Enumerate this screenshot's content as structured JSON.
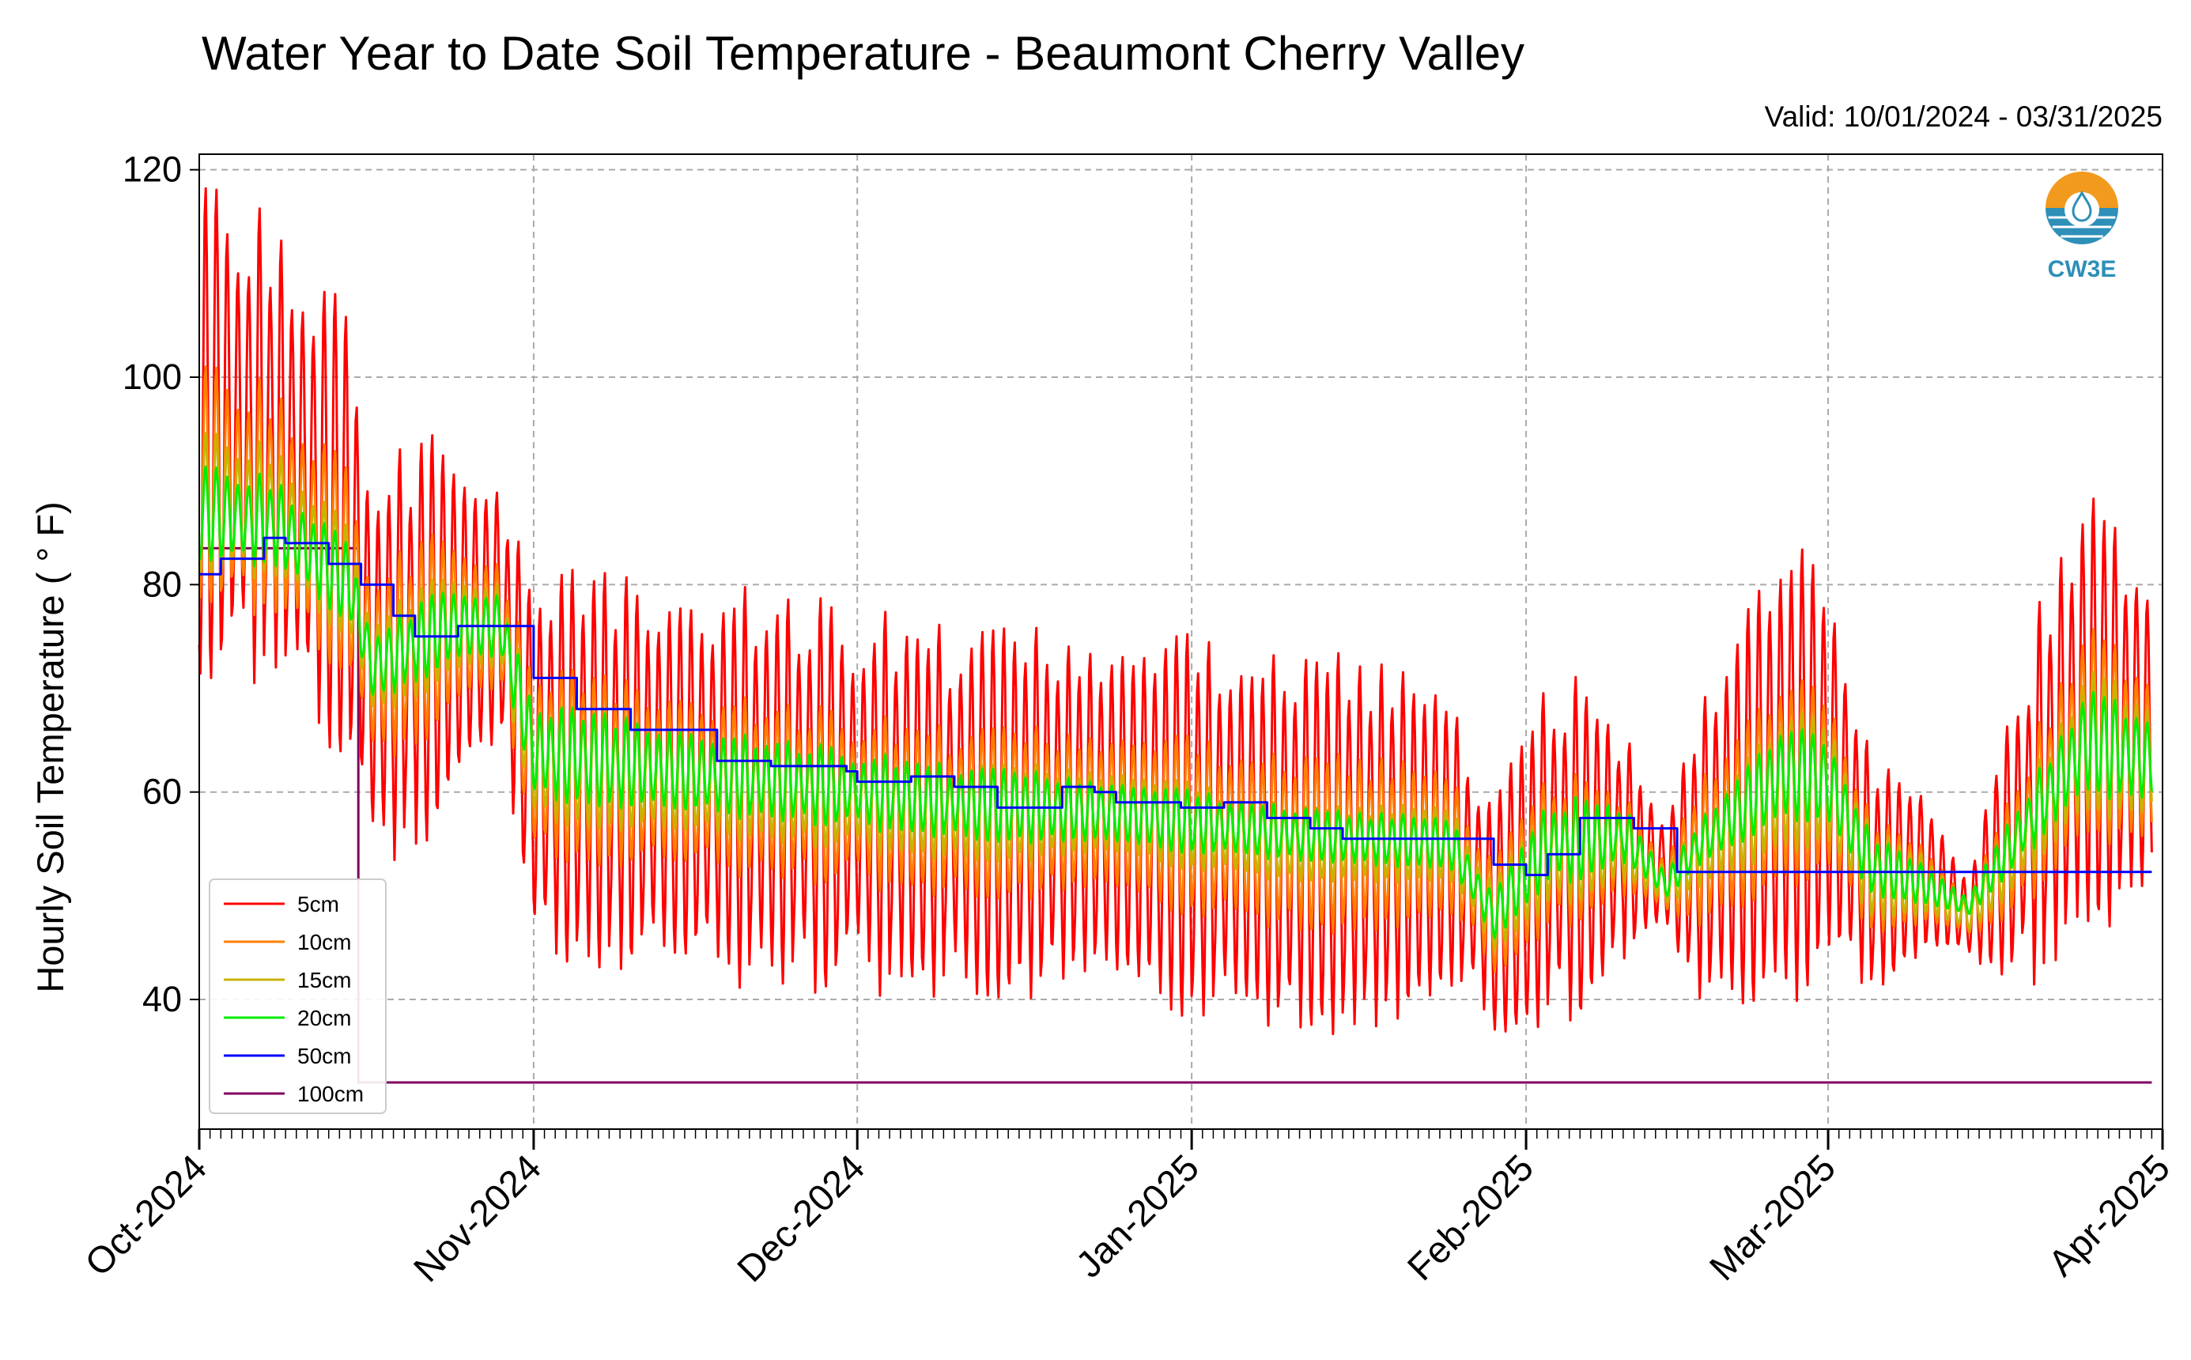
{
  "logo": {
    "text": "CW3E",
    "color": "#2e8fb8",
    "accent": "#f29a1e"
  },
  "chart_data": {
    "type": "line",
    "title": "Water Year to Date Soil Temperature - Beaumont Cherry Valley",
    "subtitle": "Valid: 10/01/2024 - 03/31/2025",
    "ylabel": "Hourly Soil Temperature ( ° F)",
    "xlabel": "",
    "ylim": [
      27.5,
      121.5
    ],
    "yticks": [
      40,
      60,
      80,
      100,
      120
    ],
    "xlim": [
      "2024-10-01",
      "2025-04-01"
    ],
    "xticks": [
      {
        "date": "2024-10-01",
        "label": "Oct-2024"
      },
      {
        "date": "2024-11-01",
        "label": "Nov-2024"
      },
      {
        "date": "2024-12-01",
        "label": "Dec-2024"
      },
      {
        "date": "2025-01-01",
        "label": "Jan-2025"
      },
      {
        "date": "2025-02-01",
        "label": "Feb-2025"
      },
      {
        "date": "2025-03-01",
        "label": "Mar-2025"
      },
      {
        "date": "2025-04-01",
        "label": "Apr-2025"
      }
    ],
    "grid": true,
    "legend_position": "lower-left",
    "daily_extremes_note": "values are approximate daily min/max read from the plot",
    "series": [
      {
        "name": "5cm",
        "color": "#ff0000",
        "style": "diurnal",
        "mean": [
          {
            "date": "2024-10-01",
            "value": 95
          },
          {
            "date": "2024-10-08",
            "value": 93
          },
          {
            "date": "2024-10-15",
            "value": 84
          },
          {
            "date": "2024-10-17",
            "value": 72
          },
          {
            "date": "2024-10-24",
            "value": 76
          },
          {
            "date": "2024-10-29",
            "value": 77
          },
          {
            "date": "2024-11-01",
            "value": 63
          },
          {
            "date": "2024-11-15",
            "value": 61
          },
          {
            "date": "2024-11-25",
            "value": 60
          },
          {
            "date": "2024-12-10",
            "value": 58
          },
          {
            "date": "2024-12-25",
            "value": 58
          },
          {
            "date": "2025-01-10",
            "value": 55
          },
          {
            "date": "2025-01-25",
            "value": 55
          },
          {
            "date": "2025-01-29",
            "value": 48
          },
          {
            "date": "2025-02-03",
            "value": 54
          },
          {
            "date": "2025-02-10",
            "value": 55
          },
          {
            "date": "2025-02-14",
            "value": 52
          },
          {
            "date": "2025-02-17",
            "value": 54
          },
          {
            "date": "2025-02-25",
            "value": 62
          },
          {
            "date": "2025-03-01",
            "value": 62
          },
          {
            "date": "2025-03-05",
            "value": 52
          },
          {
            "date": "2025-03-10",
            "value": 52
          },
          {
            "date": "2025-03-14",
            "value": 48
          },
          {
            "date": "2025-03-18",
            "value": 55
          },
          {
            "date": "2025-03-25",
            "value": 68
          },
          {
            "date": "2025-03-31",
            "value": 65
          }
        ],
        "amplitude": [
          {
            "date": "2024-10-01",
            "value": 21
          },
          {
            "date": "2024-10-08",
            "value": 19
          },
          {
            "date": "2024-10-15",
            "value": 20
          },
          {
            "date": "2024-10-20",
            "value": 18
          },
          {
            "date": "2024-10-29",
            "value": 12
          },
          {
            "date": "2024-11-01",
            "value": 16
          },
          {
            "date": "2024-11-20",
            "value": 17
          },
          {
            "date": "2024-12-20",
            "value": 15
          },
          {
            "date": "2025-01-15",
            "value": 17
          },
          {
            "date": "2025-01-29",
            "value": 10
          },
          {
            "date": "2025-02-06",
            "value": 16
          },
          {
            "date": "2025-02-14",
            "value": 4
          },
          {
            "date": "2025-02-17",
            "value": 12
          },
          {
            "date": "2025-02-25",
            "value": 20
          },
          {
            "date": "2025-03-05",
            "value": 10
          },
          {
            "date": "2025-03-14",
            "value": 4
          },
          {
            "date": "2025-03-22",
            "value": 18
          },
          {
            "date": "2025-03-27",
            "value": 20
          },
          {
            "date": "2025-03-31",
            "value": 11
          }
        ]
      },
      {
        "name": "10cm",
        "color": "#ff8000",
        "style": "diurnal",
        "mean": [
          {
            "date": "2024-10-01",
            "value": 90
          },
          {
            "date": "2024-10-08",
            "value": 88
          },
          {
            "date": "2024-10-15",
            "value": 81
          },
          {
            "date": "2024-10-17",
            "value": 72
          },
          {
            "date": "2024-10-24",
            "value": 76
          },
          {
            "date": "2024-10-29",
            "value": 76
          },
          {
            "date": "2024-11-01",
            "value": 63
          },
          {
            "date": "2024-11-15",
            "value": 61
          },
          {
            "date": "2024-11-25",
            "value": 60
          },
          {
            "date": "2024-12-10",
            "value": 58
          },
          {
            "date": "2024-12-25",
            "value": 58
          },
          {
            "date": "2025-01-10",
            "value": 55
          },
          {
            "date": "2025-01-25",
            "value": 55
          },
          {
            "date": "2025-01-29",
            "value": 48
          },
          {
            "date": "2025-02-03",
            "value": 54
          },
          {
            "date": "2025-02-10",
            "value": 55
          },
          {
            "date": "2025-02-14",
            "value": 51
          },
          {
            "date": "2025-02-17",
            "value": 54
          },
          {
            "date": "2025-02-25",
            "value": 61
          },
          {
            "date": "2025-03-01",
            "value": 61
          },
          {
            "date": "2025-03-05",
            "value": 52
          },
          {
            "date": "2025-03-10",
            "value": 51
          },
          {
            "date": "2025-03-14",
            "value": 48
          },
          {
            "date": "2025-03-18",
            "value": 54
          },
          {
            "date": "2025-03-25",
            "value": 66
          },
          {
            "date": "2025-03-31",
            "value": 63
          }
        ],
        "amplitude": [
          {
            "date": "2024-10-01",
            "value": 10
          },
          {
            "date": "2024-10-20",
            "value": 9
          },
          {
            "date": "2024-10-29",
            "value": 6
          },
          {
            "date": "2024-11-01",
            "value": 8
          },
          {
            "date": "2024-12-20",
            "value": 7
          },
          {
            "date": "2025-01-15",
            "value": 8
          },
          {
            "date": "2025-01-29",
            "value": 5
          },
          {
            "date": "2025-02-06",
            "value": 7
          },
          {
            "date": "2025-02-14",
            "value": 2
          },
          {
            "date": "2025-02-17",
            "value": 6
          },
          {
            "date": "2025-02-25",
            "value": 9
          },
          {
            "date": "2025-03-05",
            "value": 5
          },
          {
            "date": "2025-03-14",
            "value": 2
          },
          {
            "date": "2025-03-22",
            "value": 8
          },
          {
            "date": "2025-03-27",
            "value": 10
          },
          {
            "date": "2025-03-31",
            "value": 6
          }
        ]
      },
      {
        "name": "15cm",
        "color": "#c8b400",
        "style": "diurnal",
        "mean": [
          {
            "date": "2024-10-01",
            "value": 88
          },
          {
            "date": "2024-10-08",
            "value": 87
          },
          {
            "date": "2024-10-15",
            "value": 80
          },
          {
            "date": "2024-10-17",
            "value": 72
          },
          {
            "date": "2024-10-24",
            "value": 76
          },
          {
            "date": "2024-10-29",
            "value": 76
          },
          {
            "date": "2024-11-01",
            "value": 63
          },
          {
            "date": "2024-11-15",
            "value": 61
          },
          {
            "date": "2024-11-25",
            "value": 60
          },
          {
            "date": "2024-12-10",
            "value": 58
          },
          {
            "date": "2024-12-25",
            "value": 58
          },
          {
            "date": "2025-01-10",
            "value": 55
          },
          {
            "date": "2025-01-25",
            "value": 55
          },
          {
            "date": "2025-01-29",
            "value": 48
          },
          {
            "date": "2025-02-03",
            "value": 54
          },
          {
            "date": "2025-02-10",
            "value": 55
          },
          {
            "date": "2025-02-14",
            "value": 51
          },
          {
            "date": "2025-02-17",
            "value": 54
          },
          {
            "date": "2025-02-25",
            "value": 61
          },
          {
            "date": "2025-03-01",
            "value": 61
          },
          {
            "date": "2025-03-05",
            "value": 52
          },
          {
            "date": "2025-03-10",
            "value": 51
          },
          {
            "date": "2025-03-14",
            "value": 48
          },
          {
            "date": "2025-03-18",
            "value": 54
          },
          {
            "date": "2025-03-25",
            "value": 65
          },
          {
            "date": "2025-03-31",
            "value": 63
          }
        ],
        "amplitude": [
          {
            "date": "2024-10-01",
            "value": 6
          },
          {
            "date": "2024-10-29",
            "value": 4
          },
          {
            "date": "2024-11-01",
            "value": 5
          },
          {
            "date": "2025-01-29",
            "value": 3
          },
          {
            "date": "2025-02-06",
            "value": 5
          },
          {
            "date": "2025-02-14",
            "value": 1.5
          },
          {
            "date": "2025-02-25",
            "value": 6
          },
          {
            "date": "2025-03-14",
            "value": 1.5
          },
          {
            "date": "2025-03-27",
            "value": 7
          },
          {
            "date": "2025-03-31",
            "value": 4
          }
        ]
      },
      {
        "name": "20cm",
        "color": "#00ee00",
        "style": "diurnal",
        "mean": [
          {
            "date": "2024-10-01",
            "value": 87
          },
          {
            "date": "2024-10-08",
            "value": 86
          },
          {
            "date": "2024-10-15",
            "value": 80
          },
          {
            "date": "2024-10-17",
            "value": 72
          },
          {
            "date": "2024-10-24",
            "value": 76
          },
          {
            "date": "2024-10-29",
            "value": 76
          },
          {
            "date": "2024-11-01",
            "value": 64
          },
          {
            "date": "2024-11-15",
            "value": 62
          },
          {
            "date": "2024-11-25",
            "value": 61
          },
          {
            "date": "2024-12-10",
            "value": 59
          },
          {
            "date": "2024-12-25",
            "value": 58
          },
          {
            "date": "2025-01-10",
            "value": 56
          },
          {
            "date": "2025-01-25",
            "value": 55
          },
          {
            "date": "2025-01-29",
            "value": 48
          },
          {
            "date": "2025-02-03",
            "value": 55
          },
          {
            "date": "2025-02-10",
            "value": 56
          },
          {
            "date": "2025-02-14",
            "value": 51
          },
          {
            "date": "2025-02-17",
            "value": 55
          },
          {
            "date": "2025-02-25",
            "value": 62
          },
          {
            "date": "2025-03-01",
            "value": 61
          },
          {
            "date": "2025-03-05",
            "value": 53
          },
          {
            "date": "2025-03-10",
            "value": 51
          },
          {
            "date": "2025-03-14",
            "value": 49
          },
          {
            "date": "2025-03-18",
            "value": 55
          },
          {
            "date": "2025-03-25",
            "value": 65
          },
          {
            "date": "2025-03-31",
            "value": 63
          }
        ],
        "amplitude": [
          {
            "date": "2024-10-01",
            "value": 4
          },
          {
            "date": "2024-10-29",
            "value": 3
          },
          {
            "date": "2024-11-01",
            "value": 4
          },
          {
            "date": "2025-01-29",
            "value": 2
          },
          {
            "date": "2025-02-06",
            "value": 4
          },
          {
            "date": "2025-02-14",
            "value": 1
          },
          {
            "date": "2025-02-25",
            "value": 4
          },
          {
            "date": "2025-03-14",
            "value": 1
          },
          {
            "date": "2025-03-27",
            "value": 5
          },
          {
            "date": "2025-03-31",
            "value": 3
          }
        ]
      },
      {
        "name": "50cm",
        "color": "#0000ff",
        "style": "step",
        "points": [
          {
            "date": "2024-10-01",
            "value": 81
          },
          {
            "date": "2024-10-03",
            "value": 82.5
          },
          {
            "date": "2024-10-07",
            "value": 84.5
          },
          {
            "date": "2024-10-09",
            "value": 84
          },
          {
            "date": "2024-10-13",
            "value": 82
          },
          {
            "date": "2024-10-16",
            "value": 80
          },
          {
            "date": "2024-10-19",
            "value": 77
          },
          {
            "date": "2024-10-21",
            "value": 75
          },
          {
            "date": "2024-10-25",
            "value": 76
          },
          {
            "date": "2024-10-30",
            "value": 76
          },
          {
            "date": "2024-11-01",
            "value": 71
          },
          {
            "date": "2024-11-05",
            "value": 68
          },
          {
            "date": "2024-11-10",
            "value": 66
          },
          {
            "date": "2024-11-15",
            "value": 66
          },
          {
            "date": "2024-11-18",
            "value": 63
          },
          {
            "date": "2024-11-23",
            "value": 62.5
          },
          {
            "date": "2024-11-30",
            "value": 62
          },
          {
            "date": "2024-12-01",
            "value": 61
          },
          {
            "date": "2024-12-06",
            "value": 61.5
          },
          {
            "date": "2024-12-10",
            "value": 60.5
          },
          {
            "date": "2024-12-14",
            "value": 58.5
          },
          {
            "date": "2024-12-17",
            "value": 58.5
          },
          {
            "date": "2024-12-20",
            "value": 60.5
          },
          {
            "date": "2024-12-23",
            "value": 60
          },
          {
            "date": "2024-12-25",
            "value": 59
          },
          {
            "date": "2024-12-31",
            "value": 58.5
          },
          {
            "date": "2025-01-04",
            "value": 59
          },
          {
            "date": "2025-01-08",
            "value": 57.5
          },
          {
            "date": "2025-01-12",
            "value": 56.5
          },
          {
            "date": "2025-01-15",
            "value": 55.5
          },
          {
            "date": "2025-01-20",
            "value": 55.5
          },
          {
            "date": "2025-01-25",
            "value": 55.5
          },
          {
            "date": "2025-01-27",
            "value": 55.5
          },
          {
            "date": "2025-01-29",
            "value": 53
          },
          {
            "date": "2025-02-01",
            "value": 52
          },
          {
            "date": "2025-02-03",
            "value": 54
          },
          {
            "date": "2025-02-06",
            "value": 57.5
          },
          {
            "date": "2025-02-11",
            "value": 56.5
          },
          {
            "date": "2025-02-15",
            "value": 52.3
          },
          {
            "date": "2025-03-31",
            "value": 52.3
          }
        ]
      },
      {
        "name": "100cm",
        "color": "#800060",
        "style": "step",
        "points": [
          {
            "date": "2024-10-01",
            "value": 83.5
          },
          {
            "date": "2024-10-15.7",
            "value": 83.5
          },
          {
            "date": "2024-10-15.75",
            "value": 32
          },
          {
            "date": "2025-03-31",
            "value": 32
          }
        ]
      }
    ]
  }
}
